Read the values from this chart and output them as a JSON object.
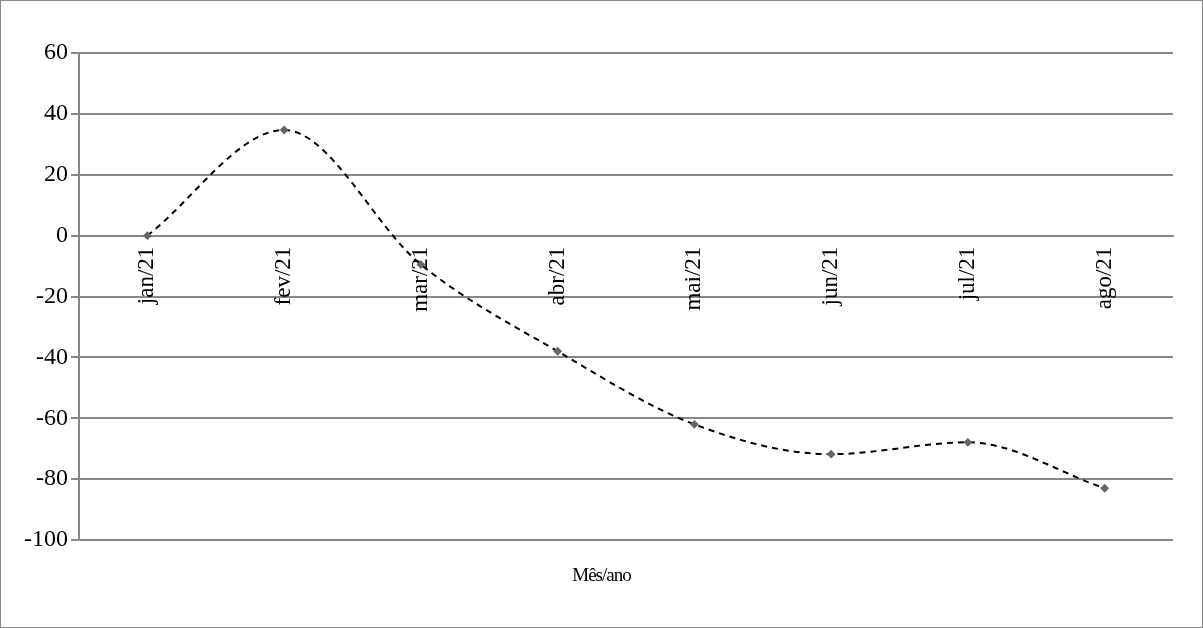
{
  "chart_data": {
    "type": "line",
    "xlabel": "Mês/ano",
    "categories": [
      "jan/21",
      "fev/21",
      "mar/21",
      "abr/21",
      "mai/21",
      "jun/21",
      "jul/21",
      "ago/21"
    ],
    "series": [
      {
        "color": "#000000",
        "values": [
          0,
          34.7,
          -9.5,
          -38,
          -62,
          -71.8,
          -67.9,
          -83
        ]
      }
    ],
    "ylim": [
      -100,
      60
    ],
    "yticks": [
      -100,
      -80,
      -60,
      -40,
      -20,
      0,
      20,
      40,
      60
    ],
    "grid": "y",
    "legend": false,
    "marker": "diamond",
    "line_style": "dashed"
  }
}
